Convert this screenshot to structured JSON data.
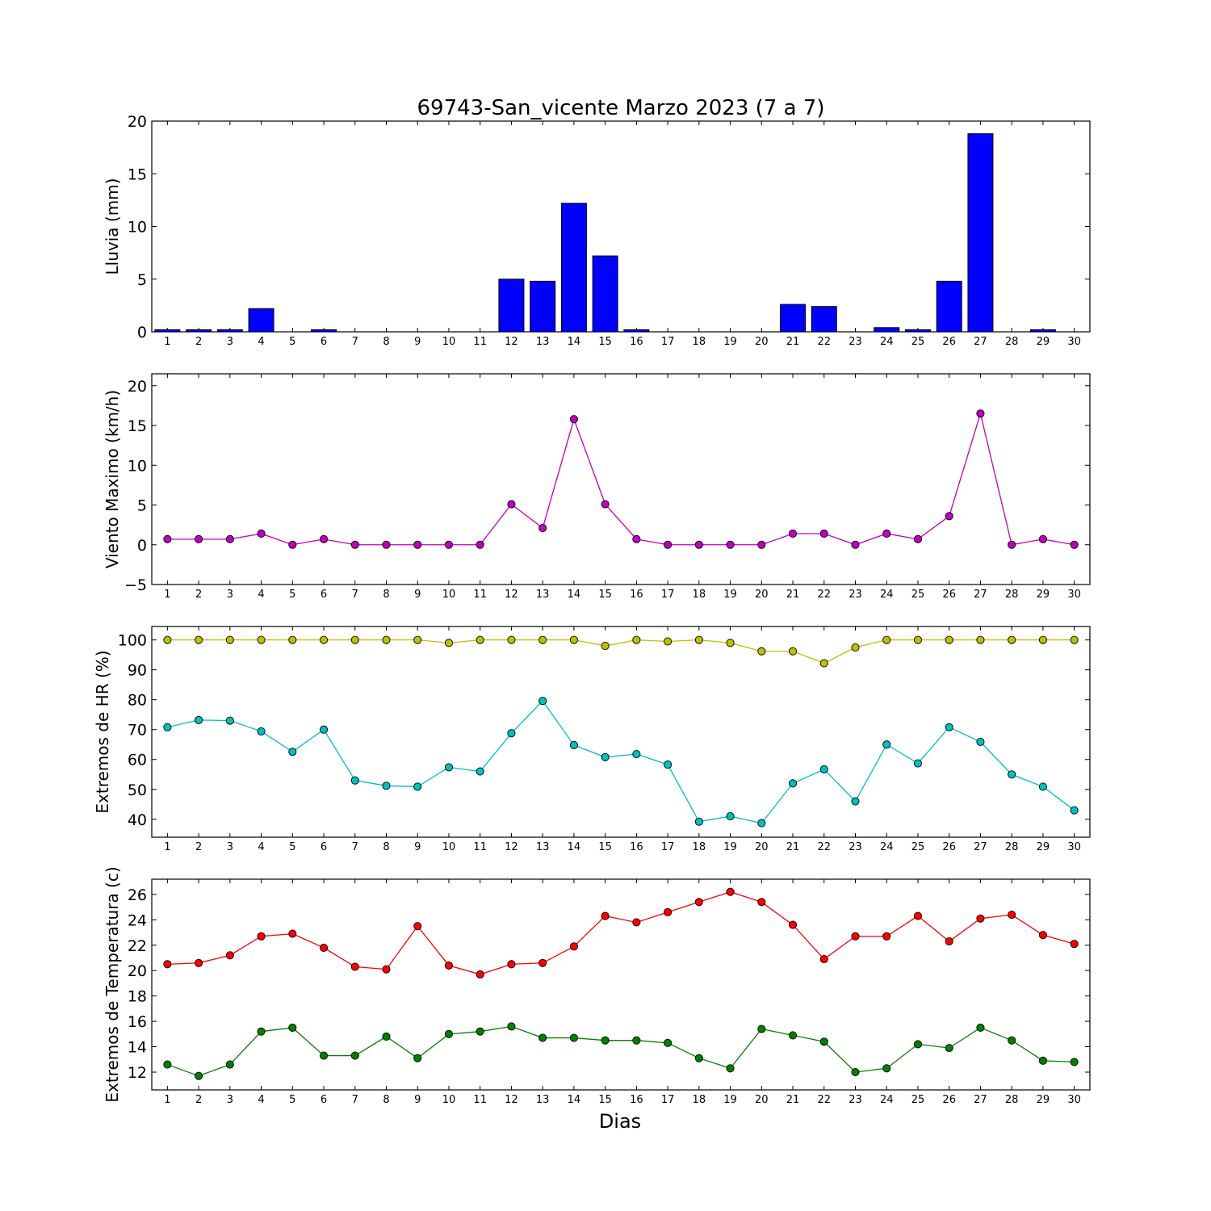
{
  "title": "69743-San_vicente Marzo 2023  (7 a 7)",
  "xlabel": "Dias",
  "chart_data": [
    {
      "id": "rain",
      "type": "bar",
      "ylabel": "Lluvia (mm)",
      "ylim": [
        0,
        20
      ],
      "yticks": [
        0,
        5,
        10,
        15,
        20
      ],
      "categories": [
        "1",
        "2",
        "3",
        "4",
        "5",
        "6",
        "7",
        "8",
        "9",
        "10",
        "11",
        "12",
        "13",
        "14",
        "15",
        "16",
        "17",
        "18",
        "19",
        "20",
        "21",
        "22",
        "23",
        "24",
        "25",
        "26",
        "27",
        "28",
        "29",
        "30"
      ],
      "series": [
        {
          "color": "#0000ff",
          "values": [
            0.2,
            0.2,
            0.2,
            2.2,
            0,
            0.2,
            0,
            0,
            0,
            0,
            0,
            5.0,
            4.8,
            12.2,
            7.2,
            0.2,
            0,
            0,
            0,
            0,
            2.6,
            2.4,
            0,
            0.4,
            0.2,
            4.8,
            18.8,
            0,
            0.2,
            0
          ]
        }
      ]
    },
    {
      "id": "wind",
      "type": "line",
      "ylabel": "Viento Maximo (km/h)",
      "ylim": [
        -5,
        21.5
      ],
      "yticks": [
        -5,
        0,
        5,
        10,
        15,
        20
      ],
      "categories": [
        "1",
        "2",
        "3",
        "4",
        "5",
        "6",
        "7",
        "8",
        "9",
        "10",
        "11",
        "12",
        "13",
        "14",
        "15",
        "16",
        "17",
        "18",
        "19",
        "20",
        "21",
        "22",
        "23",
        "24",
        "25",
        "26",
        "27",
        "28",
        "29",
        "30"
      ],
      "series": [
        {
          "color": "#bf00bf",
          "values": [
            0.7,
            0.7,
            0.7,
            1.4,
            0,
            0.7,
            0,
            0,
            0,
            0,
            0,
            5.1,
            2.1,
            15.8,
            5.1,
            0.7,
            0,
            0,
            0,
            0,
            1.4,
            1.4,
            0,
            1.4,
            0.7,
            3.6,
            16.5,
            0,
            0.7,
            0
          ]
        }
      ]
    },
    {
      "id": "hr",
      "type": "line",
      "ylabel": "Extremos de HR (%)",
      "ylim": [
        34,
        104.5
      ],
      "yticks": [
        40,
        50,
        60,
        70,
        80,
        90,
        100
      ],
      "categories": [
        "1",
        "2",
        "3",
        "4",
        "5",
        "6",
        "7",
        "8",
        "9",
        "10",
        "11",
        "12",
        "13",
        "14",
        "15",
        "16",
        "17",
        "18",
        "19",
        "20",
        "21",
        "22",
        "23",
        "24",
        "25",
        "26",
        "27",
        "28",
        "29",
        "30"
      ],
      "series": [
        {
          "color": "#bfbf00",
          "values": [
            100,
            100,
            100,
            100,
            100,
            100,
            100,
            100,
            100,
            99,
            100,
            100,
            100,
            100,
            98,
            100,
            99.5,
            100,
            99,
            96.2,
            96.2,
            92.2,
            97.5,
            100,
            100,
            100,
            100,
            100,
            100,
            100
          ]
        },
        {
          "color": "#00bfbf",
          "values": [
            70.8,
            73.2,
            73,
            69.4,
            62.6,
            70,
            53,
            51.2,
            50.9,
            57.4,
            56,
            68.8,
            79.6,
            64.8,
            60.8,
            61.8,
            58.3,
            39.2,
            41,
            38.7,
            52,
            56.7,
            46,
            65,
            58.7,
            70.8,
            65.9,
            55,
            50.9,
            43
          ]
        }
      ]
    },
    {
      "id": "temp",
      "type": "line",
      "ylabel": "Extremos de Temperatura (c)",
      "ylim": [
        10.6,
        27.2
      ],
      "yticks": [
        12,
        14,
        16,
        18,
        20,
        22,
        24,
        26
      ],
      "categories": [
        "1",
        "2",
        "3",
        "4",
        "5",
        "6",
        "7",
        "8",
        "9",
        "10",
        "11",
        "12",
        "13",
        "14",
        "15",
        "16",
        "17",
        "18",
        "19",
        "20",
        "21",
        "22",
        "23",
        "24",
        "25",
        "26",
        "27",
        "28",
        "29",
        "30"
      ],
      "series": [
        {
          "color": "#ff0000",
          "values": [
            20.5,
            20.6,
            21.2,
            22.7,
            22.9,
            21.8,
            20.3,
            20.1,
            23.5,
            20.4,
            19.7,
            20.5,
            20.6,
            21.9,
            24.3,
            23.8,
            24.6,
            25.4,
            26.2,
            25.4,
            23.6,
            20.9,
            22.7,
            22.7,
            24.3,
            22.3,
            24.1,
            24.4,
            22.8,
            22.1
          ]
        },
        {
          "color": "#008000",
          "values": [
            12.6,
            11.7,
            12.6,
            15.2,
            15.5,
            13.3,
            13.3,
            14.8,
            13.1,
            15.0,
            15.2,
            15.6,
            14.7,
            14.7,
            14.5,
            14.5,
            14.3,
            13.1,
            12.3,
            15.4,
            14.9,
            14.4,
            12.0,
            12.3,
            14.2,
            13.9,
            15.5,
            14.5,
            12.9,
            12.8
          ]
        }
      ]
    }
  ]
}
